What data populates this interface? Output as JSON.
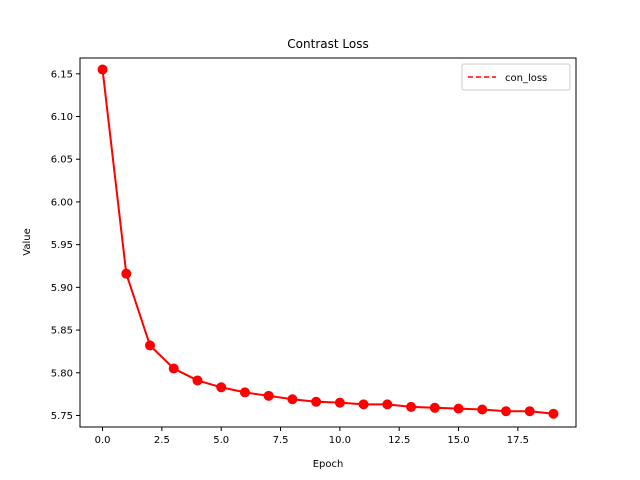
{
  "chart_data": {
    "type": "line",
    "title": "Contrast Loss",
    "xlabel": "Epoch",
    "ylabel": "Value",
    "xlim": [
      -0.95,
      19.95
    ],
    "ylim": [
      5.7365,
      6.1685
    ],
    "xticks": [
      0.0,
      2.5,
      5.0,
      7.5,
      10.0,
      12.5,
      15.0,
      17.5
    ],
    "xtick_labels": [
      "0.0",
      "2.5",
      "5.0",
      "7.5",
      "10.0",
      "12.5",
      "15.0",
      "17.5"
    ],
    "yticks": [
      5.75,
      5.8,
      5.85,
      5.9,
      5.95,
      6.0,
      6.05,
      6.1,
      6.15
    ],
    "ytick_labels": [
      "5.75",
      "5.80",
      "5.85",
      "5.90",
      "5.95",
      "6.00",
      "6.05",
      "6.10",
      "6.15"
    ],
    "grid": false,
    "legend": {
      "position": "top-right",
      "entries": [
        {
          "label": "con_loss",
          "style": "dashed",
          "color": "#ff0000"
        }
      ]
    },
    "series": [
      {
        "name": "con_loss",
        "color": "#ff0000",
        "x": [
          0,
          1,
          2,
          3,
          4,
          5,
          6,
          7,
          8,
          9,
          10,
          11,
          12,
          13,
          14,
          15,
          16,
          17,
          18,
          19
        ],
        "values": [
          6.155,
          5.916,
          5.832,
          5.805,
          5.791,
          5.783,
          5.777,
          5.773,
          5.769,
          5.766,
          5.765,
          5.763,
          5.763,
          5.76,
          5.759,
          5.758,
          5.757,
          5.755,
          5.755,
          5.752
        ]
      }
    ]
  }
}
